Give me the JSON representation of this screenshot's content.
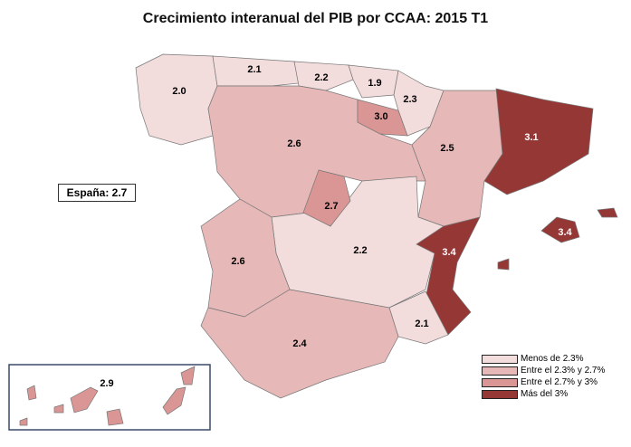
{
  "title": "Crecimiento interanual del PIB por CCAA: 2015 T1",
  "spain": "España:  2.7",
  "colors": {
    "lt23": "#f2dcdc",
    "r23_27": "#e6b8b7",
    "r27_3": "#da9694",
    "gt3": "#953735"
  },
  "legend": [
    {
      "label": "Menos de 2.3%",
      "color": "#f2dcdc"
    },
    {
      "label": "Entre el 2.3% y 2.7%",
      "color": "#e6b8b7"
    },
    {
      "label": "Entre el 2.7% y 3%",
      "color": "#da9694"
    },
    {
      "label": "Más del 3%",
      "color": "#953735"
    }
  ],
  "regions": {
    "galicia": "2.0",
    "asturias": "2.1",
    "cantabria": "2.2",
    "pais_vasco": "1.9",
    "navarra": "2.3",
    "rioja": "3.0",
    "aragon": "2.5",
    "cataluna": "3.1",
    "castilla_leon": "2.6",
    "madrid": "2.7",
    "castilla_mancha": "2.2",
    "extremadura": "2.6",
    "valencia": "3.4",
    "murcia": "2.1",
    "andalucia": "2.4",
    "baleares": "3.4",
    "canarias": "2.9"
  }
}
